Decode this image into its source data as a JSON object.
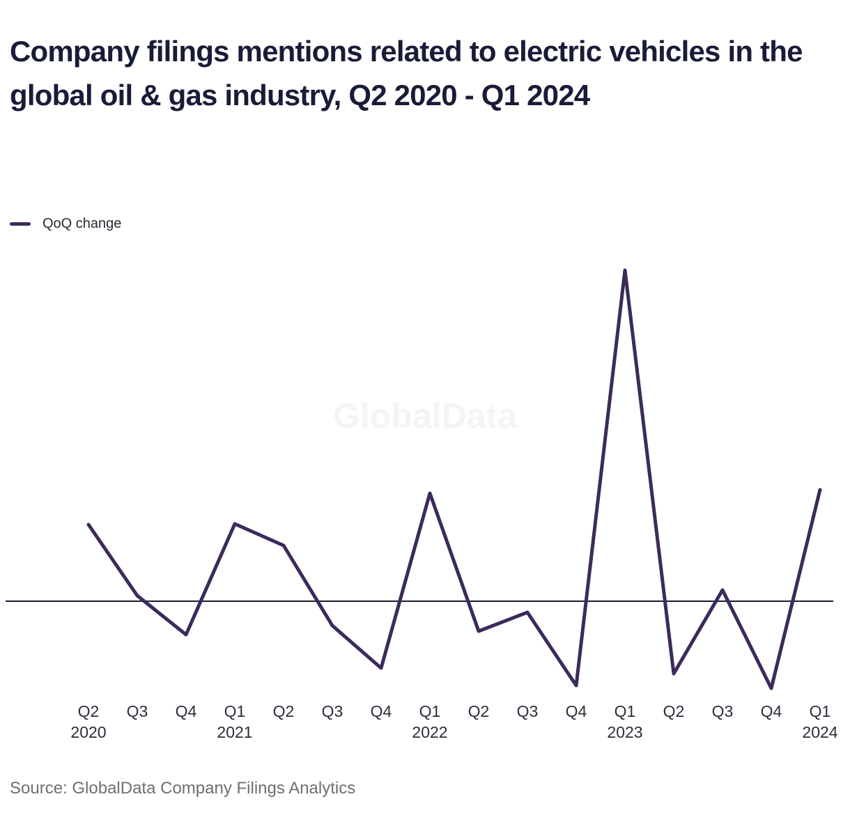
{
  "title": "Company filings mentions related to electric vehicles in the global oil & gas industry, Q2 2020 - Q1 2024",
  "legend": {
    "label": "QoQ change"
  },
  "watermark": "GlobalData",
  "source": "Source: GlobalData Company Filings Analytics",
  "colors": {
    "line": "#3c2a5d",
    "axis": "#1a1c33",
    "title": "#191c38",
    "label": "#2b2d3a",
    "source": "#6f6f6f",
    "watermark": "#f4f4f4"
  },
  "chart_data": {
    "type": "line",
    "title": "Company filings mentions related to electric vehicles in the global oil & gas industry, Q2 2020 - Q1 2024",
    "xlabel": "",
    "ylabel": "",
    "y_axis_visible": false,
    "grid": false,
    "zero_line": true,
    "legend_position": "top-left",
    "value_units": "relative (no y-axis labels shown; values estimated proportionally, zero baseline = 0)",
    "ylim": [
      -150,
      500
    ],
    "categories": [
      {
        "quarter": "Q2",
        "year": "2020"
      },
      {
        "quarter": "Q3",
        "year": ""
      },
      {
        "quarter": "Q4",
        "year": ""
      },
      {
        "quarter": "Q1",
        "year": "2021"
      },
      {
        "quarter": "Q2",
        "year": ""
      },
      {
        "quarter": "Q3",
        "year": ""
      },
      {
        "quarter": "Q4",
        "year": ""
      },
      {
        "quarter": "Q1",
        "year": "2022"
      },
      {
        "quarter": "Q2",
        "year": ""
      },
      {
        "quarter": "Q3",
        "year": ""
      },
      {
        "quarter": "Q4",
        "year": ""
      },
      {
        "quarter": "Q1",
        "year": "2023"
      },
      {
        "quarter": "Q2",
        "year": ""
      },
      {
        "quarter": "Q3",
        "year": ""
      },
      {
        "quarter": "Q4",
        "year": ""
      },
      {
        "quarter": "Q1",
        "year": "2024"
      }
    ],
    "series": [
      {
        "name": "QoQ change",
        "values": [
          110,
          8,
          -48,
          111,
          80,
          -35,
          -96,
          155,
          -43,
          -16,
          -121,
          475,
          -104,
          16,
          -125,
          160
        ]
      }
    ]
  }
}
